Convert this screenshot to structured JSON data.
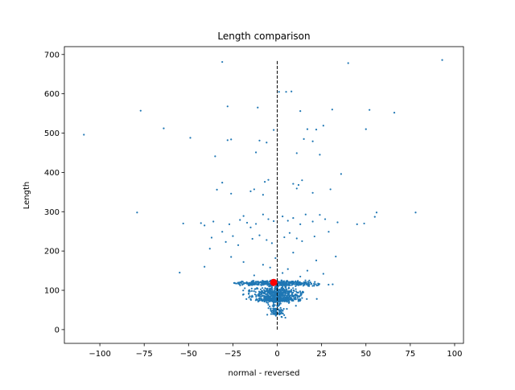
{
  "chart_data": {
    "type": "scatter",
    "title": "Length comparison",
    "xlabel": "normal - reversed",
    "ylabel": "Length",
    "xlim": [
      -120,
      105
    ],
    "ylim": [
      -35,
      720
    ],
    "grid": false,
    "xticks": [
      -100,
      -75,
      -50,
      -25,
      0,
      25,
      50,
      75,
      100
    ],
    "xtick_labels": [
      "−100",
      "−75",
      "−50",
      "−25",
      "0",
      "25",
      "50",
      "75",
      "100"
    ],
    "yticks": [
      0,
      100,
      200,
      300,
      400,
      500,
      600,
      700
    ],
    "ytick_labels": [
      "0",
      "100",
      "200",
      "300",
      "400",
      "500",
      "600",
      "700"
    ],
    "point_color": "#1f77b4",
    "highlight_color": "#ff0000",
    "reference_line": {
      "x": 0,
      "y_range": [
        0,
        685
      ],
      "style": "dashed",
      "color": "#000000"
    },
    "highlight_point": {
      "x": -2,
      "y": 120
    },
    "outlier_points": [
      [
        -109,
        496
      ],
      [
        -77,
        557
      ],
      [
        -64,
        512
      ],
      [
        -49,
        488
      ],
      [
        -31,
        681
      ],
      [
        -28,
        568
      ],
      [
        -26,
        484
      ],
      [
        -11,
        565
      ],
      [
        -12,
        451
      ],
      [
        -10,
        481
      ],
      [
        1,
        605
      ],
      [
        5,
        605
      ],
      [
        8,
        606
      ],
      [
        13,
        556
      ],
      [
        17,
        510
      ],
      [
        22,
        509
      ],
      [
        26,
        519
      ],
      [
        31,
        560
      ],
      [
        40,
        678
      ],
      [
        50,
        510
      ],
      [
        52,
        559
      ],
      [
        66,
        552
      ],
      [
        93,
        686
      ],
      [
        -35,
        441
      ],
      [
        -28,
        482
      ],
      [
        -6,
        476
      ],
      [
        -2,
        508
      ],
      [
        11,
        449
      ],
      [
        15,
        485
      ],
      [
        20,
        479
      ],
      [
        24,
        445
      ],
      [
        -26,
        346
      ],
      [
        -31,
        374
      ],
      [
        -34,
        356
      ],
      [
        -8,
        343
      ],
      [
        -15,
        352
      ],
      [
        -13,
        357
      ],
      [
        -7,
        376
      ],
      [
        -5,
        381
      ],
      [
        9,
        371
      ],
      [
        11,
        359
      ],
      [
        12,
        368
      ],
      [
        14,
        380
      ],
      [
        20,
        348
      ],
      [
        30,
        357
      ],
      [
        36,
        396
      ],
      [
        -79,
        298
      ],
      [
        -53,
        270
      ],
      [
        -43,
        271
      ],
      [
        -41,
        265
      ],
      [
        -36,
        275
      ],
      [
        -31,
        249
      ],
      [
        -27,
        268
      ],
      [
        -21,
        279
      ],
      [
        -19,
        289
      ],
      [
        -17,
        272
      ],
      [
        -15,
        260
      ],
      [
        -12,
        269
      ],
      [
        -8,
        293
      ],
      [
        -5,
        281
      ],
      [
        -2,
        276
      ],
      [
        3,
        288
      ],
      [
        6,
        277
      ],
      [
        9,
        284
      ],
      [
        13,
        268
      ],
      [
        16,
        293
      ],
      [
        20,
        275
      ],
      [
        24,
        292
      ],
      [
        27,
        281
      ],
      [
        34,
        273
      ],
      [
        49,
        270
      ],
      [
        55,
        287
      ],
      [
        56,
        298
      ],
      [
        78,
        298
      ],
      [
        45,
        268
      ],
      [
        -37,
        234
      ],
      [
        -29,
        223
      ],
      [
        -25,
        238
      ],
      [
        -22,
        215
      ],
      [
        -14,
        231
      ],
      [
        -10,
        240
      ],
      [
        -6,
        228
      ],
      [
        -3,
        220
      ],
      [
        4,
        235
      ],
      [
        7,
        246
      ],
      [
        11,
        232
      ],
      [
        14,
        225
      ],
      [
        21,
        237
      ],
      [
        29,
        249
      ],
      [
        -55,
        145
      ],
      [
        -41,
        160
      ],
      [
        -38,
        206
      ],
      [
        -26,
        185
      ],
      [
        -19,
        172
      ],
      [
        -13,
        138
      ],
      [
        -8,
        165
      ],
      [
        -4,
        158
      ],
      [
        -1,
        182
      ],
      [
        3,
        144
      ],
      [
        6,
        154
      ],
      [
        9,
        196
      ],
      [
        13,
        135
      ],
      [
        17,
        150
      ],
      [
        22,
        176
      ],
      [
        26,
        142
      ],
      [
        33,
        186
      ]
    ],
    "dense_clusters": [
      {
        "x_range": [
          -60,
          55
        ],
        "y_center": 118,
        "y_spread": 4,
        "count": 420,
        "x_spread": 16
      },
      {
        "x_range": [
          -35,
          30
        ],
        "y_center": 92,
        "y_spread": 14,
        "count": 420,
        "x_spread": 10
      },
      {
        "x_range": [
          -25,
          22
        ],
        "y_center": 76,
        "y_spread": 4,
        "count": 260,
        "x_spread": 8
      },
      {
        "x_range": [
          -6,
          8
        ],
        "y_center": 48,
        "y_spread": 12,
        "count": 80,
        "x_spread": 3
      }
    ]
  }
}
